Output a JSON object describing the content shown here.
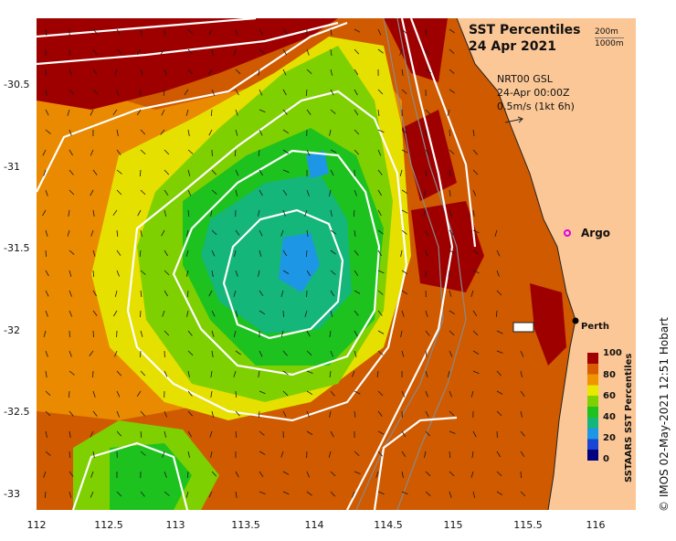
{
  "title": {
    "line1": "SST Percentiles",
    "line2": "24 Apr 2021"
  },
  "depth_legend": {
    "line1": "200m",
    "line2": "1000m"
  },
  "model_info": {
    "line1": "NRT00 GSL",
    "line2": "24-Apr 00:00Z",
    "line3": "0.5m/s (1kt 6h)"
  },
  "markers": {
    "argo": "Argo",
    "perth": "Perth"
  },
  "colorbar": {
    "title": "SSTAARS SST Percentiles",
    "ticks": [
      "100",
      "80",
      "60",
      "40",
      "20",
      "0"
    ],
    "colors": [
      "#a10000",
      "#d85c00",
      "#ef9500",
      "#e8e800",
      "#7fd000",
      "#1ec21e",
      "#14b67a",
      "#1e96e6",
      "#1846d2",
      "#000080"
    ]
  },
  "axes": {
    "longitude_ticks": [
      "112",
      "112.5",
      "113",
      "113.5",
      "114",
      "114.5",
      "115",
      "115.5",
      "116"
    ],
    "latitude_ticks": [
      "-30.5",
      "-31",
      "-31.5",
      "-32",
      "-32.5",
      "-33"
    ]
  },
  "footer": "© IMOS 02-May-2021 12:51 Hobart"
}
